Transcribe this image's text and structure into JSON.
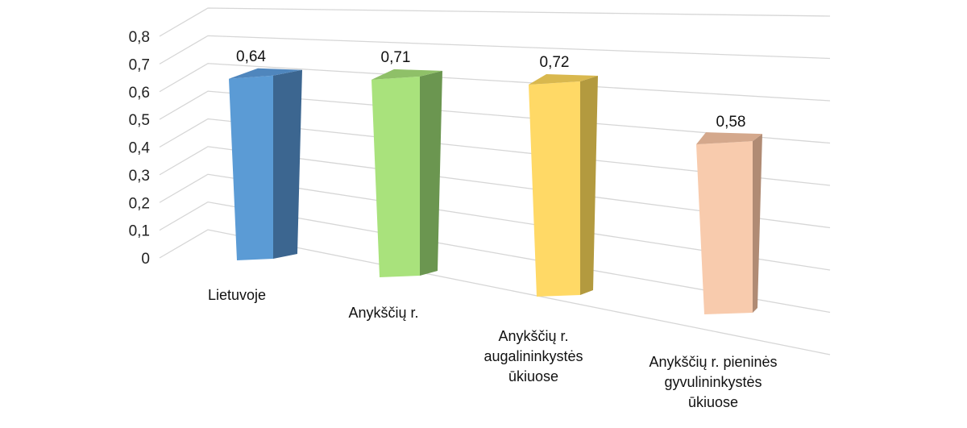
{
  "chart_data": {
    "type": "bar",
    "title": "",
    "xlabel": "",
    "ylabel": "",
    "ylim": [
      0,
      0.8
    ],
    "yticks": [
      "0",
      "0,1",
      "0,2",
      "0,3",
      "0,4",
      "0,5",
      "0,6",
      "0,7",
      "0,8"
    ],
    "grid": true,
    "legend": "none",
    "categories": [
      [
        "Lietuvoje"
      ],
      [
        "Anykščių r."
      ],
      [
        "Anykščių r.",
        "augalininkystės",
        "ūkiuose"
      ],
      [
        "Anykščių r. pieninės",
        "gyvulininkystės",
        "ūkiuose"
      ]
    ],
    "values": [
      0.64,
      0.71,
      0.72,
      0.58
    ],
    "value_labels": [
      "0,64",
      "0,71",
      "0,72",
      "0,58"
    ],
    "colors": [
      {
        "front": "#5b9bd5",
        "side": "#3c6690",
        "top": "#4f86bd"
      },
      {
        "front": "#a9e27c",
        "side": "#6b9650",
        "top": "#8fc068"
      },
      {
        "front": "#ffd966",
        "side": "#b39a3f",
        "top": "#d9b84e"
      },
      {
        "front": "#f8cbad",
        "side": "#b08b74",
        "top": "#d4a88c"
      }
    ]
  }
}
